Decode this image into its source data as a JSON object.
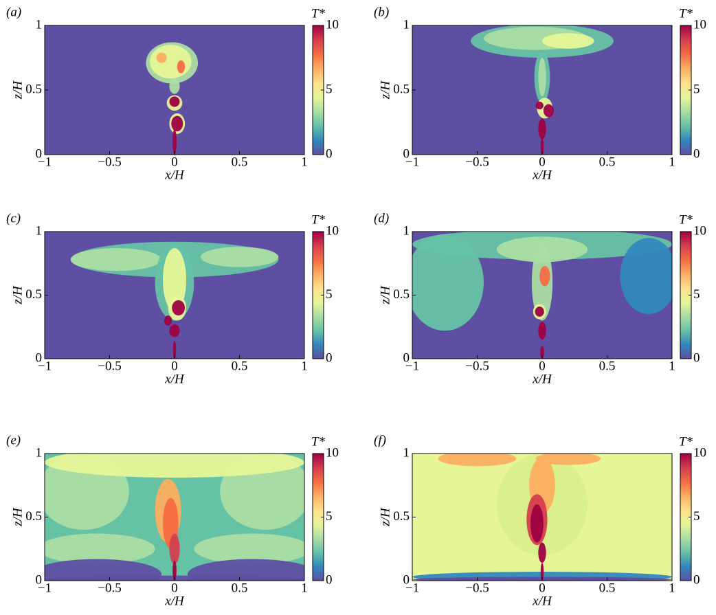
{
  "chart_data": [
    {
      "type": "field",
      "panel": "(a)",
      "xlabel": "x/H",
      "ylabel": "z/H",
      "xlim": [
        -1,
        1
      ],
      "xticks": [
        {
          "value": -1,
          "label": "−1"
        },
        {
          "value": -0.5,
          "label": "−0.5"
        },
        0,
        0.5,
        1
      ],
      "ylim": [
        0,
        1
      ],
      "yticks": [
        0,
        0.5,
        1
      ],
      "colorbar_label": "T*",
      "clim": [
        0,
        10
      ],
      "cticks": [
        0,
        5,
        10
      ],
      "colorbar_colors": [
        "#5e4fa2",
        "#3288bd",
        "#66c2a5",
        "#abdda4",
        "#e6f598",
        "#fee08b",
        "#fdae61",
        "#f46d43",
        "#d53e4f",
        "#9e0142"
      ]
    },
    {
      "type": "field",
      "panel": "(b)",
      "xlabel": "x/H",
      "ylabel": "z/H",
      "xlim": [
        -1,
        1
      ],
      "xticks": [
        {
          "value": -1,
          "label": "−1"
        },
        {
          "value": -0.5,
          "label": "−0.5"
        },
        0,
        0.5,
        1
      ],
      "ylim": [
        0,
        1
      ],
      "yticks": [
        0,
        0.5,
        1
      ],
      "colorbar_label": "T*",
      "clim": [
        0,
        10
      ],
      "cticks": [
        0,
        5,
        10
      ],
      "colorbar_colors": [
        "#5e4fa2",
        "#3288bd",
        "#66c2a5",
        "#abdda4",
        "#e6f598",
        "#fee08b",
        "#fdae61",
        "#f46d43",
        "#d53e4f",
        "#9e0142"
      ]
    },
    {
      "type": "field",
      "panel": "(c)",
      "xlabel": "x/H",
      "ylabel": "z/H",
      "xlim": [
        -1,
        1
      ],
      "xticks": [
        {
          "value": -1,
          "label": "−1"
        },
        {
          "value": -0.5,
          "label": "−0.5"
        },
        0,
        0.5,
        1
      ],
      "ylim": [
        0,
        1
      ],
      "yticks": [
        0,
        0.5,
        1
      ],
      "colorbar_label": "T*",
      "clim": [
        0,
        10
      ],
      "cticks": [
        0,
        5,
        10
      ],
      "colorbar_colors": [
        "#5e4fa2",
        "#3288bd",
        "#66c2a5",
        "#abdda4",
        "#e6f598",
        "#fee08b",
        "#fdae61",
        "#f46d43",
        "#d53e4f",
        "#9e0142"
      ]
    },
    {
      "type": "field",
      "panel": "(d)",
      "xlabel": "x/H",
      "ylabel": "z/H",
      "xlim": [
        -1,
        1
      ],
      "xticks": [
        {
          "value": -1,
          "label": "−1"
        },
        {
          "value": -0.5,
          "label": "−0.5"
        },
        0,
        0.5,
        1
      ],
      "ylim": [
        0,
        1
      ],
      "yticks": [
        0,
        0.5,
        1
      ],
      "colorbar_label": "T*",
      "clim": [
        0,
        10
      ],
      "cticks": [
        0,
        5,
        10
      ],
      "colorbar_colors": [
        "#5e4fa2",
        "#3288bd",
        "#66c2a5",
        "#abdda4",
        "#e6f598",
        "#fee08b",
        "#fdae61",
        "#f46d43",
        "#d53e4f",
        "#9e0142"
      ]
    },
    {
      "type": "field",
      "panel": "(e)",
      "xlabel": "x/H",
      "ylabel": "z/H",
      "xlim": [
        -1,
        1
      ],
      "xticks": [
        {
          "value": -1,
          "label": "−1"
        },
        {
          "value": -0.5,
          "label": "−0.5"
        },
        0,
        0.5,
        1
      ],
      "ylim": [
        0,
        1
      ],
      "yticks": [
        0,
        0.5,
        1
      ],
      "colorbar_label": "T*",
      "clim": [
        0,
        10
      ],
      "cticks": [
        0,
        5,
        10
      ],
      "colorbar_colors": [
        "#5e4fa2",
        "#3288bd",
        "#66c2a5",
        "#abdda4",
        "#e6f598",
        "#fee08b",
        "#fdae61",
        "#f46d43",
        "#d53e4f",
        "#9e0142"
      ]
    },
    {
      "type": "field",
      "panel": "(f)",
      "xlabel": "x/H",
      "ylabel": "z/H",
      "xlim": [
        -1,
        1
      ],
      "xticks": [
        {
          "value": -1,
          "label": "−1"
        },
        {
          "value": -0.5,
          "label": "−0.5"
        },
        0,
        0.5,
        1
      ],
      "ylim": [
        0,
        1
      ],
      "yticks": [
        0,
        0.5,
        1
      ],
      "colorbar_label": "T*",
      "clim": [
        0,
        10
      ],
      "cticks": [
        0,
        5,
        10
      ],
      "colorbar_colors": [
        "#5e4fa2",
        "#3288bd",
        "#66c2a5",
        "#abdda4",
        "#e6f598",
        "#fee08b",
        "#fdae61",
        "#f46d43",
        "#d53e4f",
        "#9e0142"
      ]
    }
  ]
}
